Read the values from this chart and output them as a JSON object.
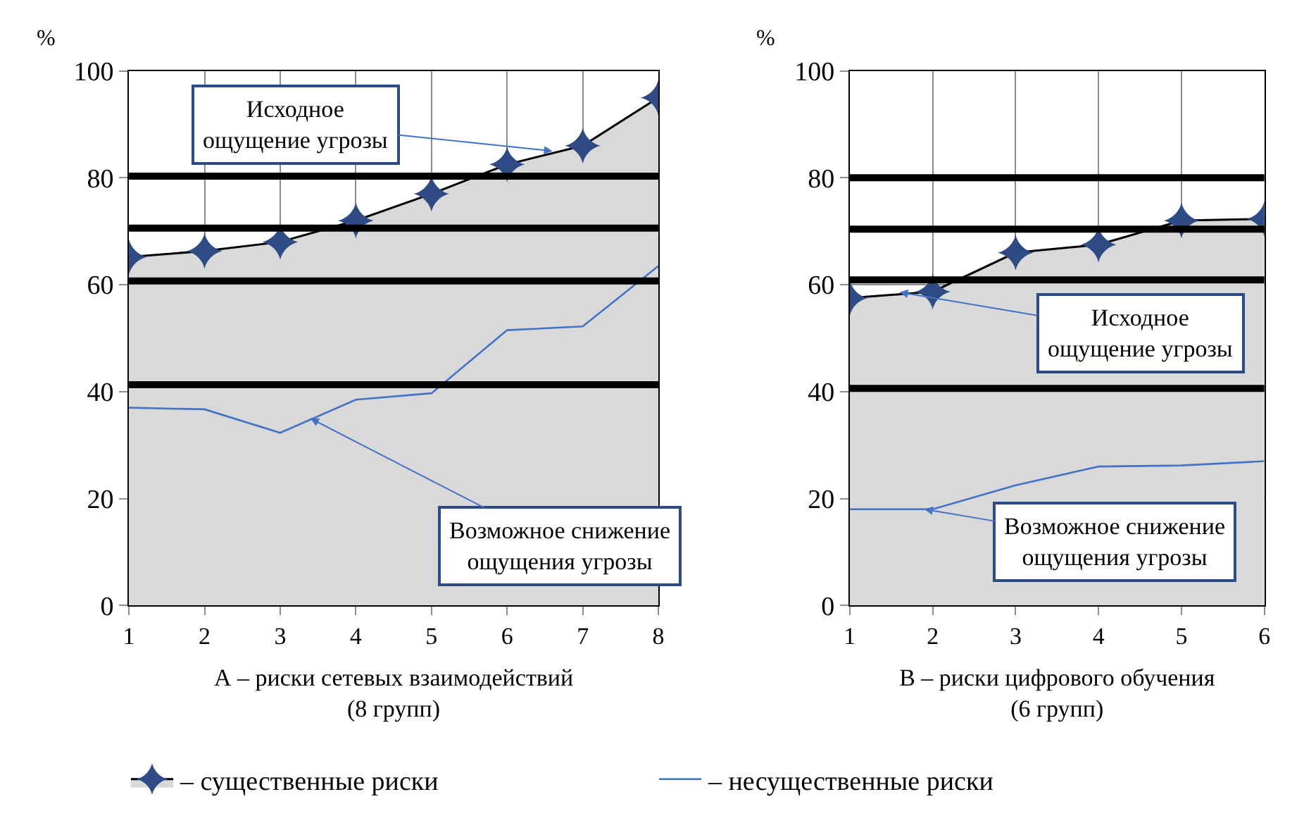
{
  "chart_data": [
    {
      "type": "area",
      "xlabel": "А – риски сетевых взаимодействий\n(8 групп)",
      "ylabel": "%",
      "x": [
        1,
        2,
        3,
        4,
        5,
        6,
        7,
        8
      ],
      "series": [
        {
          "name": "– существенные риски",
          "color": "#d9d9d9",
          "marker": "star",
          "values": [
            65.2,
            66.3,
            68,
            72,
            77,
            82.5,
            86,
            95
          ]
        },
        {
          "name": "– несущественные риски",
          "type": "line",
          "color": "#4472c4",
          "values": [
            37,
            36.7,
            32.3,
            38.5,
            39.7,
            51.5,
            52.2,
            63.5
          ]
        }
      ],
      "xlim": [
        1,
        8
      ],
      "xticks": [
        1,
        2,
        3,
        4,
        5,
        6,
        7,
        8
      ],
      "ylim": [
        0,
        100
      ],
      "yticks": [
        0,
        20,
        40,
        60,
        80,
        100
      ],
      "ref_lines": [
        {
          "axis": "y",
          "value": 80.3,
          "color": "#000000"
        },
        {
          "axis": "y",
          "value": 70.6,
          "color": "#000000"
        },
        {
          "axis": "y",
          "value": 60.7,
          "color": "#000000"
        },
        {
          "axis": "y",
          "value": 41.3,
          "color": "#000000"
        }
      ],
      "annotations": [
        {
          "text": "Исходное\nощущение угрозы",
          "x": 6.6,
          "y": 85
        },
        {
          "text": "Возможное снижение\nощущения угрозы",
          "x": 3.4,
          "y": 35
        }
      ],
      "grid": true,
      "legend": "bottom"
    },
    {
      "type": "area",
      "xlabel": "В – риски цифрового обучения\n(6 групп)",
      "ylabel": "%",
      "x": [
        1,
        2,
        3,
        4,
        5,
        6
      ],
      "series": [
        {
          "color": "#d9d9d9",
          "marker": "star",
          "values": [
            57.5,
            58.7,
            66,
            67.5,
            72,
            72.3
          ]
        },
        {
          "type": "line",
          "color": "#4472c4",
          "values": [
            18,
            18,
            22.5,
            26,
            26.2,
            27
          ]
        }
      ],
      "xlim": [
        1,
        6
      ],
      "xticks": [
        1,
        2,
        3,
        4,
        5,
        6
      ],
      "ylim": [
        0,
        100
      ],
      "yticks": [
        0,
        20,
        40,
        60,
        80,
        100
      ],
      "ref_lines": [
        {
          "axis": "y",
          "value": 80,
          "color": "#000000"
        },
        {
          "axis": "y",
          "value": 70.4,
          "color": "#000000"
        },
        {
          "axis": "y",
          "value": 60.9,
          "color": "#000000"
        },
        {
          "axis": "y",
          "value": 40.6,
          "color": "#000000"
        }
      ],
      "annotations": [
        {
          "text": "Исходное\nощущение угрозы",
          "x": 1.6,
          "y": 58.6
        },
        {
          "text": "Возможное снижение\nощущения угрозы",
          "x": 1.9,
          "y": 18
        }
      ],
      "grid": true
    }
  ]
}
